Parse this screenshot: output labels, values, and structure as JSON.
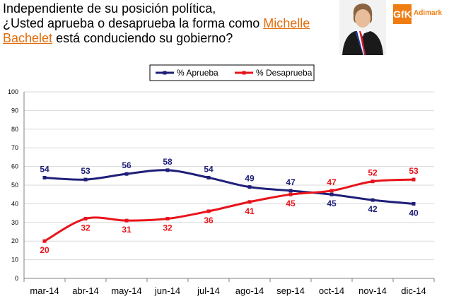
{
  "header": {
    "line1": "Independiente de su posición política,",
    "line2_a": "¿Usted aprueba o desaprueba la forma como ",
    "link_1": "Michelle",
    "link_2": "Bachelet",
    "line3_b": " está conduciendo su gobierno?"
  },
  "logo": {
    "brand": "GfK",
    "sub": "Adimark",
    "brand_color": "#f07d12"
  },
  "colors": {
    "aprueba": "#1f1f7a",
    "desaprueba": "#e8141b"
  },
  "chart_data": {
    "type": "line",
    "categories": [
      "mar-14",
      "abr-14",
      "may-14",
      "jun-14",
      "jul-14",
      "ago-14",
      "sep-14",
      "oct-14",
      "nov-14",
      "dic-14"
    ],
    "series": [
      {
        "name": "% Aprueba",
        "values": [
          54,
          53,
          56,
          58,
          54,
          49,
          47,
          45,
          42,
          40
        ]
      },
      {
        "name": "% Desaprueba",
        "values": [
          20,
          32,
          31,
          32,
          36,
          41,
          45,
          47,
          52,
          53
        ]
      }
    ],
    "ylim": [
      0,
      100
    ],
    "yticks": [
      0,
      10,
      20,
      30,
      40,
      50,
      60,
      70,
      80,
      90,
      100
    ],
    "grid": true,
    "legend_position": "top-center"
  }
}
